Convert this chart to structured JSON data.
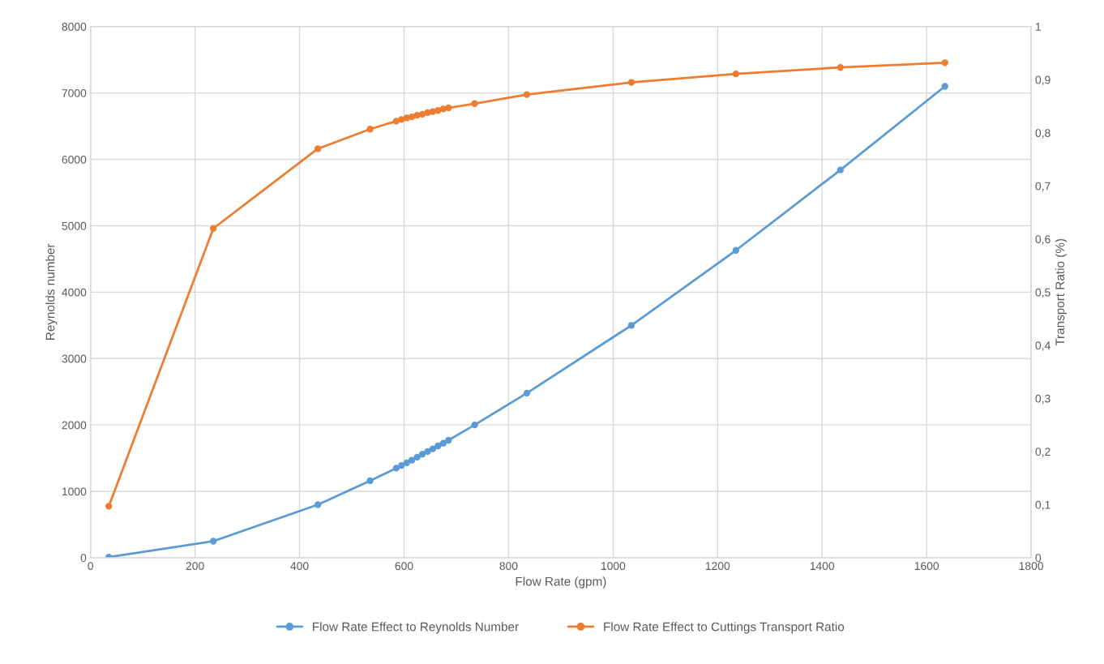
{
  "chart_data": {
    "type": "line",
    "xlabel": "Flow Rate (gpm)",
    "ylabel": "Reynolds number",
    "y2label": "Transport Ratio (%)",
    "xlim": [
      0,
      1800
    ],
    "xticks": [
      0,
      200,
      400,
      600,
      800,
      1000,
      1200,
      1400,
      1600,
      1800
    ],
    "ylim": [
      0,
      8000
    ],
    "yticks": [
      0,
      1000,
      2000,
      3000,
      4000,
      5000,
      6000,
      7000,
      8000
    ],
    "y2lim": [
      0,
      1
    ],
    "y2ticks": [
      {
        "value": 0,
        "label": "0"
      },
      {
        "value": 0.1,
        "label": "0,1"
      },
      {
        "value": 0.2,
        "label": "0,2"
      },
      {
        "value": 0.3,
        "label": "0,3"
      },
      {
        "value": 0.4,
        "label": "0,4"
      },
      {
        "value": 0.5,
        "label": "0,5"
      },
      {
        "value": 0.6,
        "label": "0,6"
      },
      {
        "value": 0.7,
        "label": "0,7"
      },
      {
        "value": 0.8,
        "label": "0,8"
      },
      {
        "value": 0.9,
        "label": "0,9"
      },
      {
        "value": 1,
        "label": "1"
      }
    ],
    "x": [
      35,
      235,
      435,
      535,
      585,
      595,
      605,
      615,
      625,
      635,
      645,
      655,
      665,
      675,
      685,
      735,
      835,
      1035,
      1235,
      1435,
      1635
    ],
    "series": [
      {
        "name": "Flow Rate Effect to Reynolds Number",
        "color": "#5b9bd5",
        "values": [
          10,
          250,
          800,
          1160,
          1350,
          1390,
          1430,
          1470,
          1515,
          1560,
          1600,
          1640,
          1685,
          1725,
          1770,
          2000,
          2480,
          3500,
          4630,
          5840,
          7100
        ]
      },
      {
        "name": "Flow Rate Effect to Cuttings Transport Ratio",
        "color": "#ed7d31",
        "axis": "y2",
        "values": [
          0.097,
          0.62,
          0.77,
          0.807,
          0.822,
          0.825,
          0.828,
          0.83,
          0.833,
          0.835,
          0.838,
          0.84,
          0.842,
          0.845,
          0.847,
          0.855,
          0.872,
          0.895,
          0.911,
          0.923,
          0.932
        ]
      }
    ],
    "grid": true,
    "legend": "bottom",
    "marker": "circle",
    "line_style": "solid"
  }
}
